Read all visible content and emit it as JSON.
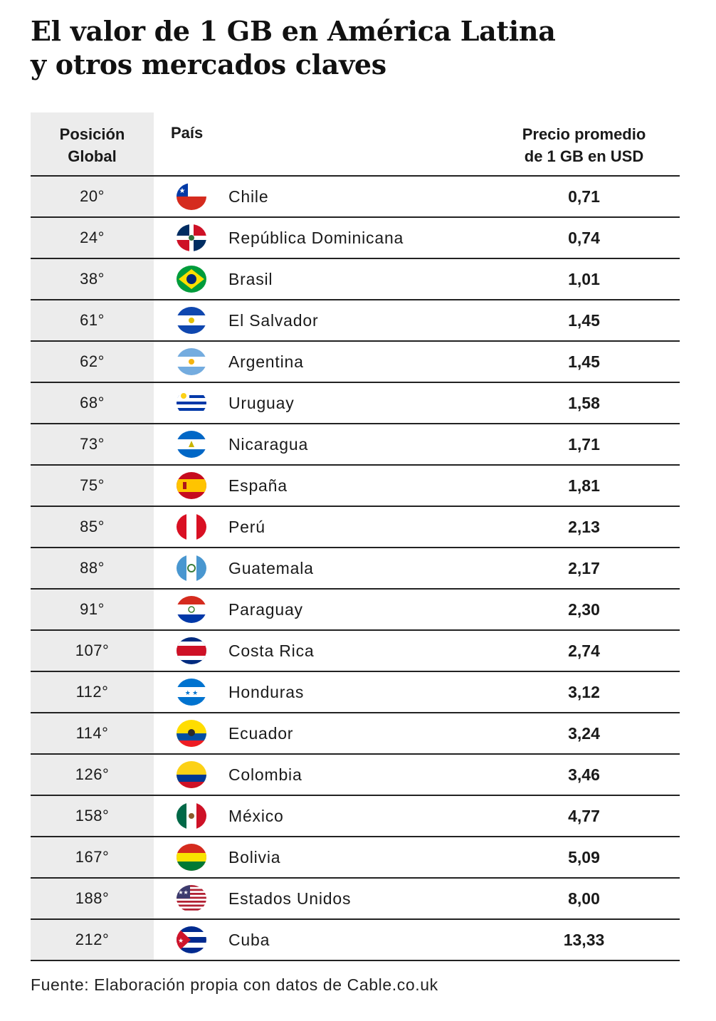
{
  "title_lines": [
    "El valor de 1 GB en América Latina",
    "y otros mercados claves"
  ],
  "columns": {
    "position_lines": [
      "Posición",
      "Global"
    ],
    "country": "País",
    "price_lines": [
      "Precio promedio",
      "de 1 GB en USD"
    ]
  },
  "chart_data": {
    "type": "table",
    "title": "El valor de 1 GB en América Latina y otros mercados claves",
    "columns": [
      "Posición Global",
      "País",
      "Precio promedio de 1 GB en USD"
    ],
    "rows": [
      {
        "pos": "20°",
        "country": "Chile",
        "price": "0,71",
        "flag": "chile"
      },
      {
        "pos": "24°",
        "country": "República Dominicana",
        "price": "0,74",
        "flag": "dominican-republic"
      },
      {
        "pos": "38°",
        "country": "Brasil",
        "price": "1,01",
        "flag": "brazil"
      },
      {
        "pos": "61°",
        "country": "El Salvador",
        "price": "1,45",
        "flag": "el-salvador"
      },
      {
        "pos": "62°",
        "country": "Argentina",
        "price": "1,45",
        "flag": "argentina"
      },
      {
        "pos": "68°",
        "country": "Uruguay",
        "price": "1,58",
        "flag": "uruguay"
      },
      {
        "pos": "73°",
        "country": "Nicaragua",
        "price": "1,71",
        "flag": "nicaragua"
      },
      {
        "pos": "75°",
        "country": "España",
        "price": "1,81",
        "flag": "spain"
      },
      {
        "pos": "85°",
        "country": "Perú",
        "price": "2,13",
        "flag": "peru"
      },
      {
        "pos": "88°",
        "country": "Guatemala",
        "price": "2,17",
        "flag": "guatemala"
      },
      {
        "pos": "91°",
        "country": "Paraguay",
        "price": "2,30",
        "flag": "paraguay"
      },
      {
        "pos": "107°",
        "country": "Costa Rica",
        "price": "2,74",
        "flag": "costa-rica"
      },
      {
        "pos": "112°",
        "country": "Honduras",
        "price": "3,12",
        "flag": "honduras"
      },
      {
        "pos": "114°",
        "country": "Ecuador",
        "price": "3,24",
        "flag": "ecuador"
      },
      {
        "pos": "126°",
        "country": "Colombia",
        "price": "3,46",
        "flag": "colombia"
      },
      {
        "pos": "158°",
        "country": "México",
        "price": "4,77",
        "flag": "mexico"
      },
      {
        "pos": "167°",
        "country": "Bolivia",
        "price": "5,09",
        "flag": "bolivia"
      },
      {
        "pos": "188°",
        "country": "Estados Unidos",
        "price": "8,00",
        "flag": "united-states"
      },
      {
        "pos": "212°",
        "country": "Cuba",
        "price": "13,33",
        "flag": "cuba"
      }
    ]
  },
  "source": "Fuente: Elaboración propia con datos de Cable.co.uk",
  "colors": {
    "rank_column_bg": "#ececec",
    "rule": "#222222",
    "text": "#1a1a1a"
  }
}
